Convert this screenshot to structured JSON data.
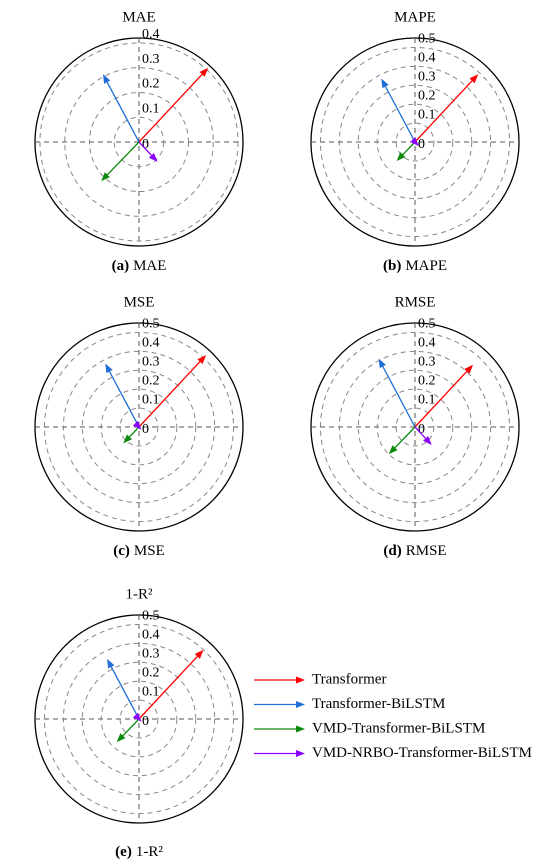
{
  "legend": {
    "series": [
      {
        "name": "Transformer",
        "color": "#ff0000",
        "angle": 47
      },
      {
        "name": "Transformer-BiLSTM",
        "color": "#1f6fd6",
        "angle": 118
      },
      {
        "name": "VMD-Transformer-BiLSTM",
        "color": "#0a8a0a",
        "angle": 226
      },
      {
        "name": "VMD-NRBO-Transformer-BiLSTM",
        "color": "#8b00ff",
        "angle": 313
      }
    ]
  },
  "chart_data": [
    {
      "type": "polar",
      "title": "MAE",
      "caption": {
        "label": "(a)",
        "text": "MAE"
      },
      "rlim": [
        0,
        0.42
      ],
      "rticks": [
        0.0,
        0.1,
        0.2,
        0.3,
        0.4
      ],
      "values": [
        0.41,
        0.31,
        0.22,
        0.11
      ]
    },
    {
      "type": "polar",
      "title": "MAPE",
      "caption": {
        "label": "(b)",
        "text": "MAPE"
      },
      "rlim": [
        0,
        0.55
      ],
      "rticks": [
        0.0,
        0.1,
        0.2,
        0.3,
        0.4,
        0.5
      ],
      "values": [
        0.49,
        0.38,
        0.14,
        0.03
      ]
    },
    {
      "type": "polar",
      "title": "MSE",
      "caption": {
        "label": "(c)",
        "text": "MSE"
      },
      "rlim": [
        0,
        0.55
      ],
      "rticks": [
        0.0,
        0.1,
        0.2,
        0.3,
        0.4,
        0.5
      ],
      "values": [
        0.52,
        0.38,
        0.12,
        0.02
      ]
    },
    {
      "type": "polar",
      "title": "RMSE",
      "caption": {
        "label": "(d)",
        "text": "RMSE"
      },
      "rlim": [
        0,
        0.55
      ],
      "rticks": [
        0.0,
        0.1,
        0.2,
        0.3,
        0.4,
        0.5
      ],
      "values": [
        0.45,
        0.41,
        0.2,
        0.13
      ]
    },
    {
      "type": "polar",
      "title": "1-R²",
      "caption": {
        "label": "(e)",
        "text": "1-R²"
      },
      "rlim": [
        0,
        0.55
      ],
      "rticks": [
        0.0,
        0.1,
        0.2,
        0.3,
        0.4,
        0.5
      ],
      "values": [
        0.5,
        0.36,
        0.17,
        0.02
      ]
    }
  ]
}
